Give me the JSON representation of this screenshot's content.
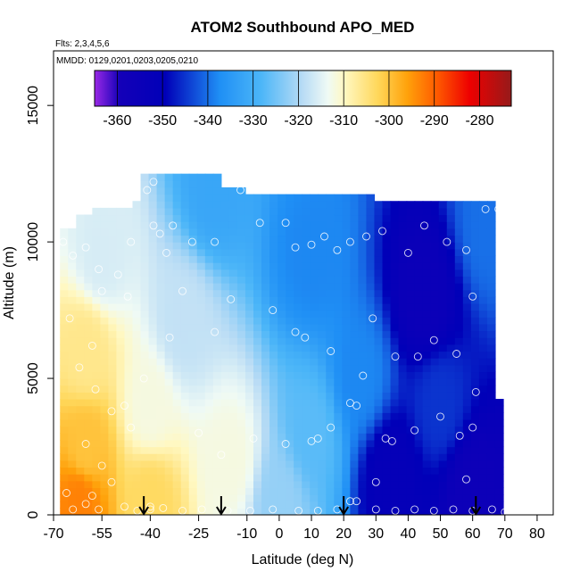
{
  "chart_data": {
    "type": "heatmap",
    "title": "ATOM2 Southbound APO_MED",
    "note_flights": "Flts: 2,3,4,5,6",
    "note_dates": "MMDD: 0129,0201,0203,0205,0210",
    "xlabel": "Latitude (deg N)",
    "ylabel": "Altitude (m)",
    "xlim": [
      -70,
      85
    ],
    "ylim": [
      0,
      17000
    ],
    "x_ticks": [
      -70,
      -55,
      -40,
      -25,
      -10,
      0,
      10,
      20,
      30,
      40,
      50,
      60,
      70,
      80
    ],
    "y_ticks": [
      0,
      5000,
      10000,
      15000
    ],
    "colorbar": {
      "min": -365,
      "max": -273,
      "ticks": [
        -360,
        -350,
        -340,
        -330,
        -320,
        -310,
        -300,
        -290,
        -280
      ],
      "placement": "top, inside plot"
    },
    "grid": false,
    "field_samples": [
      {
        "lat": -62,
        "alt": 500,
        "value": -293
      },
      {
        "lat": -60,
        "alt": 2500,
        "value": -300
      },
      {
        "lat": -60,
        "alt": 6000,
        "value": -306
      },
      {
        "lat": -55,
        "alt": 9500,
        "value": -316
      },
      {
        "lat": -40,
        "alt": 500,
        "value": -303
      },
      {
        "lat": -40,
        "alt": 4000,
        "value": -312
      },
      {
        "lat": -30,
        "alt": 7000,
        "value": -318
      },
      {
        "lat": -20,
        "alt": 12000,
        "value": -332
      },
      {
        "lat": -15,
        "alt": 2000,
        "value": -312
      },
      {
        "lat": 0,
        "alt": 500,
        "value": -322
      },
      {
        "lat": 10,
        "alt": 3000,
        "value": -327
      },
      {
        "lat": 10,
        "alt": 9500,
        "value": -338
      },
      {
        "lat": 25,
        "alt": 5000,
        "value": -338
      },
      {
        "lat": 35,
        "alt": 1500,
        "value": -352
      },
      {
        "lat": 45,
        "alt": 8000,
        "value": -355
      },
      {
        "lat": 50,
        "alt": 4000,
        "value": -345
      },
      {
        "lat": 60,
        "alt": 1000,
        "value": -356
      },
      {
        "lat": 65,
        "alt": 10500,
        "value": -340
      }
    ],
    "sample_points": [
      [
        -67,
        10000
      ],
      [
        -64,
        9500
      ],
      [
        -60,
        9800
      ],
      [
        -56,
        9000
      ],
      [
        -50,
        8800
      ],
      [
        -47,
        8000
      ],
      [
        -55,
        8200
      ],
      [
        -65,
        7200
      ],
      [
        -58,
        6200
      ],
      [
        -62,
        5400
      ],
      [
        -57,
        4600
      ],
      [
        -52,
        3800
      ],
      [
        -46,
        3200
      ],
      [
        -60,
        2600
      ],
      [
        -55,
        1800
      ],
      [
        -52,
        1200
      ],
      [
        -58,
        700
      ],
      [
        -66,
        800
      ],
      [
        -56,
        200
      ],
      [
        -48,
        300
      ],
      [
        -44,
        150
      ],
      [
        -40,
        200
      ],
      [
        -36,
        250
      ],
      [
        -30,
        150
      ],
      [
        -24,
        200
      ],
      [
        -16,
        150
      ],
      [
        -9,
        150
      ],
      [
        -2,
        200
      ],
      [
        6,
        150
      ],
      [
        12,
        150
      ],
      [
        18,
        200
      ],
      [
        24,
        500
      ],
      [
        30,
        200
      ],
      [
        36,
        150
      ],
      [
        42,
        200
      ],
      [
        48,
        150
      ],
      [
        54,
        200
      ],
      [
        60,
        150
      ],
      [
        66,
        200
      ],
      [
        70,
        100
      ],
      [
        -39,
        12200
      ],
      [
        -41,
        11900
      ],
      [
        -33,
        10600
      ],
      [
        -37,
        10300
      ],
      [
        -27,
        10000
      ],
      [
        -20,
        10000
      ],
      [
        -12,
        11900
      ],
      [
        -9,
        12000
      ],
      [
        -6,
        10700
      ],
      [
        2,
        10700
      ],
      [
        5,
        9800
      ],
      [
        10,
        9900
      ],
      [
        14,
        10200
      ],
      [
        18,
        9700
      ],
      [
        22,
        10000
      ],
      [
        27,
        10200
      ],
      [
        32,
        10400
      ],
      [
        40,
        9600
      ],
      [
        45,
        10600
      ],
      [
        52,
        10000
      ],
      [
        58,
        9700
      ],
      [
        64,
        11200
      ],
      [
        68,
        11200
      ],
      [
        69,
        9300
      ],
      [
        -39,
        10600
      ],
      [
        -46,
        10000
      ],
      [
        -35,
        9600
      ],
      [
        -30,
        8200
      ],
      [
        -15,
        7900
      ],
      [
        -2,
        7500
      ],
      [
        5,
        6700
      ],
      [
        8,
        6500
      ],
      [
        16,
        6000
      ],
      [
        29,
        7200
      ],
      [
        36,
        5800
      ],
      [
        43,
        5800
      ],
      [
        48,
        6400
      ],
      [
        55,
        5900
      ],
      [
        60,
        8000
      ],
      [
        61,
        4500
      ],
      [
        26,
        5100
      ],
      [
        22,
        4100
      ],
      [
        24,
        4000
      ],
      [
        -20,
        6700
      ],
      [
        -34,
        6500
      ],
      [
        -42,
        5000
      ],
      [
        -48,
        4000
      ],
      [
        16,
        3200
      ],
      [
        10,
        2700
      ],
      [
        12,
        2800
      ],
      [
        2,
        2600
      ],
      [
        -8,
        2800
      ],
      [
        -25,
        3000
      ],
      [
        -18,
        2200
      ],
      [
        33,
        2800
      ],
      [
        35,
        2700
      ],
      [
        42,
        3100
      ],
      [
        50,
        3600
      ],
      [
        56,
        2900
      ],
      [
        60,
        3200
      ],
      [
        58,
        1300
      ],
      [
        30,
        1200
      ],
      [
        22,
        500
      ],
      [
        -40,
        300
      ],
      [
        -64,
        200
      ],
      [
        -60,
        400
      ]
    ],
    "arrows_at_latitude": [
      -42,
      -18,
      20,
      61
    ]
  }
}
